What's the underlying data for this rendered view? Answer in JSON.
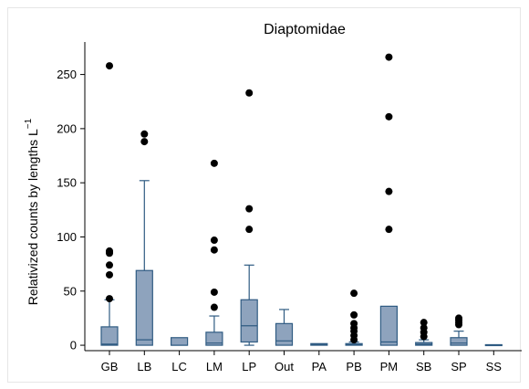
{
  "chart_data": {
    "type": "box",
    "title": "Diaptomidae",
    "ylabel": "Relativized counts by lengths L",
    "ylabel_superscript": "−1",
    "ylim": [
      -5,
      280
    ],
    "yticks": [
      0,
      50,
      100,
      150,
      200,
      250
    ],
    "categories": [
      "GB",
      "LB",
      "LC",
      "LM",
      "LP",
      "Out",
      "PA",
      "PB",
      "PM",
      "SB",
      "SP",
      "SS"
    ],
    "boxes": [
      {
        "q1": 0,
        "median": 1,
        "q3": 17,
        "whisker_low": 0,
        "whisker_high": 42,
        "outliers": [
          43,
          65,
          74,
          85,
          86,
          87,
          258
        ]
      },
      {
        "q1": 0,
        "median": 5,
        "q3": 69,
        "whisker_low": 0,
        "whisker_high": 152,
        "outliers": [
          188,
          195
        ]
      },
      {
        "q1": 0,
        "median": 0,
        "q3": 7,
        "whisker_low": 0,
        "whisker_high": 7,
        "outliers": []
      },
      {
        "q1": 0,
        "median": 2,
        "q3": 12,
        "whisker_low": 0,
        "whisker_high": 27,
        "outliers": [
          35,
          49,
          88,
          97,
          168
        ]
      },
      {
        "q1": 3,
        "median": 18,
        "q3": 42,
        "whisker_low": 0,
        "whisker_high": 74,
        "outliers": [
          107,
          126,
          233
        ]
      },
      {
        "q1": 0,
        "median": 4,
        "q3": 20,
        "whisker_low": 0,
        "whisker_high": 33,
        "outliers": []
      },
      {
        "q1": 0,
        "median": 1,
        "q3": 1.5,
        "whisker_low": 0,
        "whisker_high": 1.5,
        "outliers": []
      },
      {
        "q1": 0,
        "median": 0.5,
        "q3": 1.5,
        "whisker_low": 0,
        "whisker_high": 3,
        "outliers": [
          5,
          9,
          13,
          16,
          20,
          28,
          48
        ]
      },
      {
        "q1": 0,
        "median": 3,
        "q3": 36,
        "whisker_low": 0,
        "whisker_high": 36,
        "outliers": [
          107,
          142,
          211,
          266
        ]
      },
      {
        "q1": 0,
        "median": 1,
        "q3": 2.5,
        "whisker_low": 0,
        "whisker_high": 5,
        "outliers": [
          8,
          12,
          16,
          21
        ]
      },
      {
        "q1": 0,
        "median": 2,
        "q3": 7,
        "whisker_low": 0,
        "whisker_high": 13,
        "outliers": [
          19,
          21,
          23,
          25
        ]
      },
      {
        "q1": 0,
        "median": 0,
        "q3": 0.5,
        "whisker_low": 0,
        "whisker_high": 0.5,
        "outliers": []
      }
    ],
    "colors": {
      "box_fill": "#8ea3bd",
      "box_stroke": "#2f5b82",
      "outlier": "#000000"
    },
    "grid": false,
    "legend": "none"
  }
}
